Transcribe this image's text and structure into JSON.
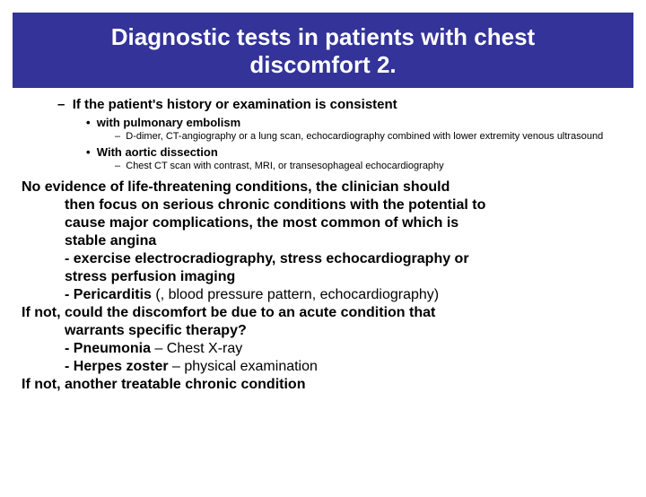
{
  "title": "Diagnostic tests in patients with chest discomfort 2.",
  "l1_dash": "–",
  "l1_text": "If the patient's history or examination is consistent",
  "l2a_bullet": "•",
  "l2a_text": "with pulmonary embolism",
  "l3a_dash": "–",
  "l3a_text": "D-dimer, CT-angiography or a lung scan, echocardiography combined with lower extremity venous ultrasound",
  "l2b_bullet": "•",
  "l2b_text": "With aortic dissection",
  "l3b_dash": "–",
  "l3b_text": "Chest CT scan with contrast, MRI, or transesophageal echocardiography",
  "p1_line1": "No evidence of life-threatening conditions, the clinician should",
  "p1_line2": "then focus on serious chronic conditions with the potential to",
  "p1_line3": "cause major complications, the most common of which is",
  "p1_line4": "stable angina",
  "p1_line5a": "- exercise electrocradiography, stress echocardiography or",
  "p1_line5b": "stress perfusion imaging",
  "p1_line6a": "- Pericarditis",
  "p1_line6b": " (, blood pressure pattern, echocardiography)",
  "p2_line1": "If not, could the discomfort be due to an acute condition that",
  "p2_line2": "warrants specific therapy?",
  "p2_line3a": "- Pneumonia",
  "p2_line3b": " – Chest X-ray",
  "p2_line4a": "- Herpes zoster",
  "p2_line4b": " – physical examination",
  "p3_line1": "If not, another treatable chronic condition"
}
